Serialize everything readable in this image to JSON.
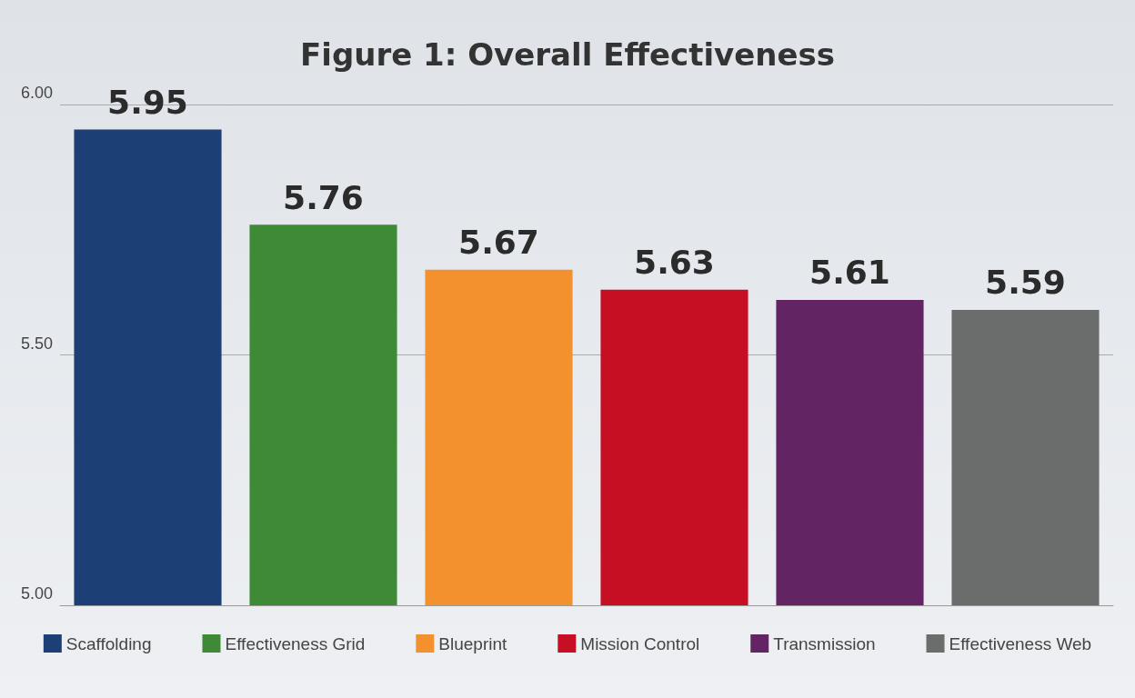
{
  "chart_data": {
    "type": "bar",
    "title": "Figure 1: Overall Effectiveness",
    "categories": [
      null,
      null,
      null,
      null,
      null,
      null
    ],
    "series": [
      {
        "name": "Scaffolding",
        "color": "#1c3f75",
        "values": [
          5.95,
          null,
          null,
          null,
          null,
          null
        ]
      },
      {
        "name": "Effectiveness Grid",
        "color": "#3e8a37",
        "values": [
          null,
          5.76,
          null,
          null,
          null,
          null
        ]
      },
      {
        "name": "Blueprint",
        "color": "#f2912d",
        "values": [
          null,
          null,
          5.67,
          null,
          null,
          null
        ]
      },
      {
        "name": "Mission Control",
        "color": "#c60f22",
        "values": [
          null,
          null,
          null,
          5.63,
          null,
          null
        ]
      },
      {
        "name": "Transmission",
        "color": "#632464",
        "values": [
          null,
          null,
          null,
          null,
          5.61,
          null
        ]
      },
      {
        "name": "Effectiveness Web",
        "color": "#6b6d6c",
        "values": [
          null,
          null,
          null,
          null,
          null,
          5.59
        ]
      }
    ],
    "ylim": [
      5,
      6
    ],
    "yticks": [
      {
        "value": 5,
        "label": "5.00"
      },
      {
        "value": 5.5,
        "label": "5.50"
      },
      {
        "value": 6,
        "label": "6.00"
      }
    ],
    "grid": "y",
    "legend": "bottom",
    "data_labels": true
  }
}
